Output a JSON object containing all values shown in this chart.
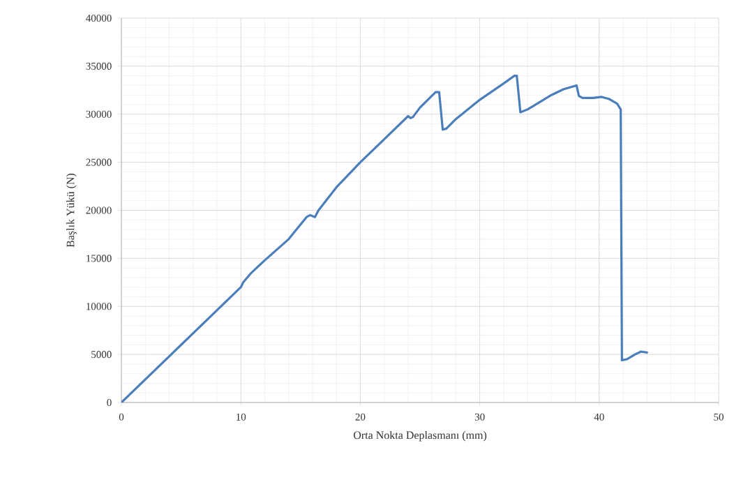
{
  "chart_data": {
    "type": "line",
    "xlabel": "Orta Nokta Deplasmanı (mm)",
    "ylabel": "Başlık Yükü (N)",
    "xlim": [
      0,
      50
    ],
    "xticks": [
      0,
      10,
      20,
      30,
      40,
      50
    ],
    "ylim": [
      0,
      40000
    ],
    "yticks": [
      0,
      5000,
      10000,
      15000,
      20000,
      25000,
      30000,
      35000,
      40000
    ],
    "grid": true,
    "marker": "none",
    "line_style": "solid",
    "series": [
      {
        "color": "#4a7ebb",
        "x": [
          0,
          10,
          10.2,
          10.8,
          12,
          14,
          15.5,
          15.8,
          16.2,
          16.5,
          18,
          20,
          22,
          24,
          24.2,
          24.4,
          25,
          26.3,
          26.6,
          26.9,
          27.2,
          28,
          30,
          32,
          32.9,
          33.1,
          33.4,
          34,
          36,
          37,
          38.1,
          38.3,
          38.6,
          39.5,
          40.2,
          40.8,
          41.5,
          41.8,
          41.9,
          42.3,
          43,
          43.5,
          44
        ],
        "values": [
          0,
          12000,
          12500,
          13400,
          14800,
          17000,
          19300,
          19500,
          19300,
          20000,
          22400,
          25000,
          27400,
          29800,
          29600,
          29700,
          30700,
          32300,
          32300,
          28400,
          28500,
          29500,
          31500,
          33200,
          34000,
          34000,
          30200,
          30500,
          32000,
          32600,
          33000,
          31900,
          31700,
          31700,
          31800,
          31600,
          31100,
          30500,
          4400,
          4500,
          5000,
          5300,
          5200
        ]
      }
    ]
  }
}
